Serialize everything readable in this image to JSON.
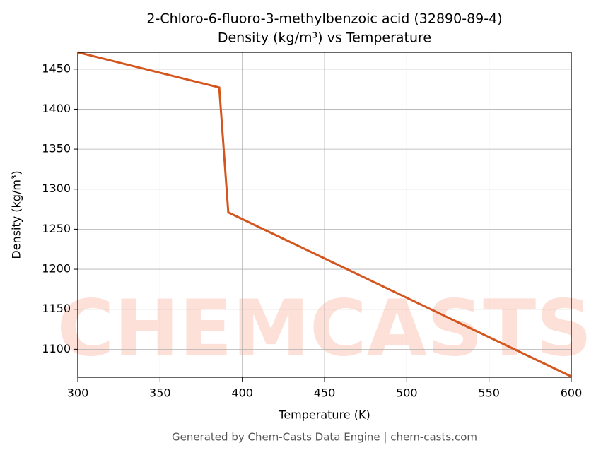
{
  "chart_data": {
    "type": "line",
    "title": "2-Chloro-6-fluoro-3-methylbenzoic acid (32890-89-4)",
    "subtitle": "Density (kg/m³) vs Temperature",
    "x_label": "Temperature (K)",
    "y_label": "Density (kg/m³)",
    "footer": "Generated by Chem-Casts Data Engine | chem-casts.com",
    "watermark": "CHEMCASTS",
    "x": [
      300,
      386,
      391.5,
      600
    ],
    "series": [
      {
        "name": "Density",
        "color": "#d4561f",
        "values": [
          1471,
          1427,
          1271,
          1066
        ]
      }
    ],
    "xlim": [
      300,
      600
    ],
    "xticks": [
      300,
      350,
      400,
      450,
      500,
      550,
      600
    ],
    "ylim": [
      1065,
      1471
    ],
    "yticks": [
      1100,
      1150,
      1200,
      1250,
      1300,
      1350,
      1400,
      1450
    ],
    "grid": true
  }
}
